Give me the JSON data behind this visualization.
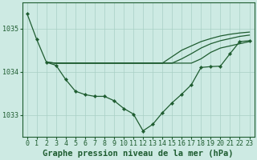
{
  "bg_color": "#cdeae3",
  "grid_color": "#a8cfc5",
  "line_color": "#1e5c30",
  "marker_color": "#1e5c30",
  "xlabel": "Graphe pression niveau de la mer (hPa)",
  "xlabel_fontsize": 7.5,
  "tick_fontsize": 6.0,
  "ylim": [
    1032.5,
    1035.6
  ],
  "yticks": [
    1033,
    1034,
    1035
  ],
  "xlim": [
    -0.5,
    23.5
  ],
  "xticks": [
    0,
    1,
    2,
    3,
    4,
    5,
    6,
    7,
    8,
    9,
    10,
    11,
    12,
    13,
    14,
    15,
    16,
    17,
    18,
    19,
    20,
    21,
    22,
    23
  ],
  "line_flat1_x": [
    2,
    3,
    4,
    5,
    6,
    7,
    8,
    9,
    10,
    11,
    12,
    13,
    14,
    15,
    16,
    17,
    18,
    19,
    20,
    21,
    22,
    23
  ],
  "line_flat1_y": [
    1034.22,
    1034.2,
    1034.2,
    1034.2,
    1034.2,
    1034.2,
    1034.2,
    1034.2,
    1034.2,
    1034.2,
    1034.2,
    1034.2,
    1034.2,
    1034.2,
    1034.2,
    1034.2,
    1034.3,
    1034.45,
    1034.55,
    1034.6,
    1034.65,
    1034.7
  ],
  "line_flat2_x": [
    2,
    3,
    4,
    5,
    6,
    7,
    8,
    9,
    10,
    11,
    12,
    13,
    14,
    15,
    16,
    17,
    18,
    19,
    20,
    21,
    22,
    23
  ],
  "line_flat2_y": [
    1034.22,
    1034.2,
    1034.2,
    1034.2,
    1034.2,
    1034.2,
    1034.2,
    1034.2,
    1034.2,
    1034.2,
    1034.2,
    1034.2,
    1034.2,
    1034.2,
    1034.3,
    1034.42,
    1034.55,
    1034.65,
    1034.72,
    1034.77,
    1034.82,
    1034.85
  ],
  "line_flat3_x": [
    2,
    3,
    4,
    5,
    6,
    7,
    8,
    9,
    10,
    11,
    12,
    13,
    14,
    15,
    16,
    17,
    18,
    19,
    20,
    21,
    22,
    23
  ],
  "line_flat3_y": [
    1034.22,
    1034.2,
    1034.2,
    1034.2,
    1034.2,
    1034.2,
    1034.2,
    1034.2,
    1034.2,
    1034.2,
    1034.2,
    1034.2,
    1034.2,
    1034.35,
    1034.5,
    1034.6,
    1034.7,
    1034.77,
    1034.83,
    1034.87,
    1034.9,
    1034.92
  ],
  "line_main_x": [
    0,
    1,
    2,
    3,
    4,
    5,
    6,
    7,
    8,
    9,
    10,
    11,
    12,
    13,
    14,
    15,
    16,
    17,
    18,
    19,
    20,
    21,
    22,
    23
  ],
  "line_main_y": [
    1035.35,
    1034.75,
    1034.22,
    1034.15,
    1033.82,
    1033.55,
    1033.47,
    1033.43,
    1033.43,
    1033.33,
    1033.15,
    1033.02,
    1032.63,
    1032.78,
    1033.05,
    1033.28,
    1033.48,
    1033.7,
    1034.1,
    1034.12,
    1034.13,
    1034.42,
    1034.7,
    1034.72
  ]
}
